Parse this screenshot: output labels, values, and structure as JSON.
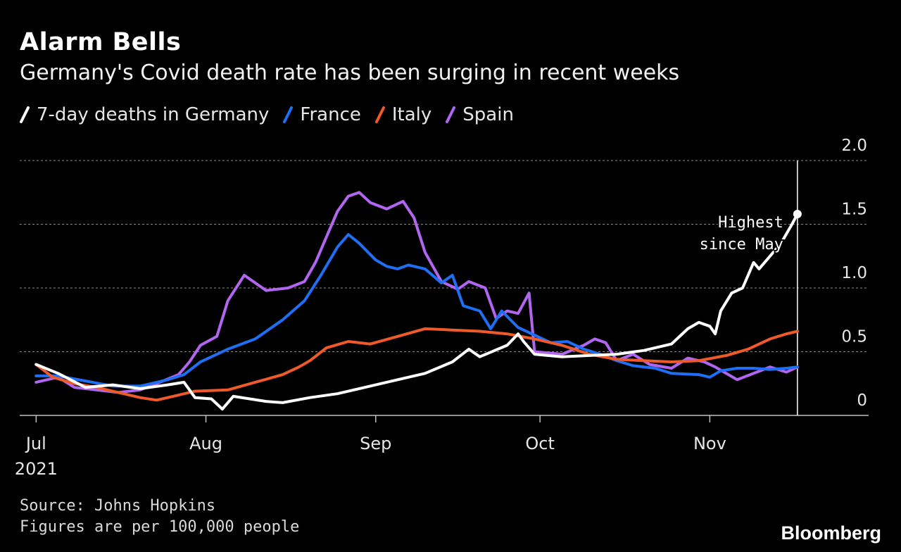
{
  "title": "Alarm Bells",
  "subtitle": "Germany's Covid death rate has been surging in recent weeks",
  "source_line1": "Source: Johns Hopkins",
  "source_line2": "Figures are per 100,000 people",
  "brand": "Bloomberg",
  "chart_data": {
    "type": "line",
    "x_start": "2021-07-01",
    "x_end": "2021-11-17",
    "x_range": [
      "2021-06-28",
      "2021-11-30"
    ],
    "ylim": [
      0,
      2.0
    ],
    "yticks": [
      0,
      0.5,
      1.0,
      1.5,
      2.0
    ],
    "ytick_labels": [
      "0",
      "0.5",
      "1.0",
      "1.5",
      "2.0"
    ],
    "x_ticks": [
      {
        "date": "2021-07-01",
        "label": "Jul",
        "sublabel": "2021"
      },
      {
        "date": "2021-08-01",
        "label": "Aug",
        "sublabel": ""
      },
      {
        "date": "2021-09-01",
        "label": "Sep",
        "sublabel": ""
      },
      {
        "date": "2021-10-01",
        "label": "Oct",
        "sublabel": ""
      },
      {
        "date": "2021-11-01",
        "label": "Nov",
        "sublabel": ""
      }
    ],
    "grid": true,
    "legend_position": "top-left",
    "series": [
      {
        "name": "7-day deaths in Germany",
        "color": "#ffffff",
        "points": [
          [
            "2021-07-01",
            0.4
          ],
          [
            "2021-07-05",
            0.33
          ],
          [
            "2021-07-10",
            0.22
          ],
          [
            "2021-07-15",
            0.24
          ],
          [
            "2021-07-20",
            0.21
          ],
          [
            "2021-07-25",
            0.24
          ],
          [
            "2021-07-28",
            0.26
          ],
          [
            "2021-07-30",
            0.14
          ],
          [
            "2021-08-02",
            0.13
          ],
          [
            "2021-08-04",
            0.05
          ],
          [
            "2021-08-06",
            0.15
          ],
          [
            "2021-08-12",
            0.11
          ],
          [
            "2021-08-15",
            0.1
          ],
          [
            "2021-08-20",
            0.14
          ],
          [
            "2021-08-25",
            0.17
          ],
          [
            "2021-08-30",
            0.22
          ],
          [
            "2021-09-05",
            0.28
          ],
          [
            "2021-09-10",
            0.33
          ],
          [
            "2021-09-15",
            0.42
          ],
          [
            "2021-09-18",
            0.52
          ],
          [
            "2021-09-20",
            0.46
          ],
          [
            "2021-09-25",
            0.55
          ],
          [
            "2021-09-27",
            0.64
          ],
          [
            "2021-09-28",
            0.58
          ],
          [
            "2021-09-30",
            0.48
          ],
          [
            "2021-10-05",
            0.46
          ],
          [
            "2021-10-10",
            0.47
          ],
          [
            "2021-10-15",
            0.48
          ],
          [
            "2021-10-20",
            0.51
          ],
          [
            "2021-10-25",
            0.56
          ],
          [
            "2021-10-28",
            0.68
          ],
          [
            "2021-10-30",
            0.73
          ],
          [
            "2021-11-01",
            0.7
          ],
          [
            "2021-11-02",
            0.64
          ],
          [
            "2021-11-03",
            0.82
          ],
          [
            "2021-11-05",
            0.96
          ],
          [
            "2021-11-07",
            1.0
          ],
          [
            "2021-11-09",
            1.2
          ],
          [
            "2021-11-10",
            1.15
          ],
          [
            "2021-11-12",
            1.25
          ],
          [
            "2021-11-14",
            1.35
          ],
          [
            "2021-11-16",
            1.5
          ],
          [
            "2021-11-17",
            1.58
          ]
        ]
      },
      {
        "name": "France",
        "color": "#1f6ff5",
        "points": [
          [
            "2021-07-01",
            0.31
          ],
          [
            "2021-07-05",
            0.31
          ],
          [
            "2021-07-10",
            0.27
          ],
          [
            "2021-07-15",
            0.23
          ],
          [
            "2021-07-20",
            0.23
          ],
          [
            "2021-07-25",
            0.28
          ],
          [
            "2021-07-28",
            0.32
          ],
          [
            "2021-07-31",
            0.42
          ],
          [
            "2021-08-05",
            0.52
          ],
          [
            "2021-08-10",
            0.6
          ],
          [
            "2021-08-15",
            0.75
          ],
          [
            "2021-08-19",
            0.9
          ],
          [
            "2021-08-22",
            1.1
          ],
          [
            "2021-08-25",
            1.32
          ],
          [
            "2021-08-27",
            1.42
          ],
          [
            "2021-08-29",
            1.35
          ],
          [
            "2021-09-01",
            1.22
          ],
          [
            "2021-09-03",
            1.17
          ],
          [
            "2021-09-05",
            1.15
          ],
          [
            "2021-09-07",
            1.18
          ],
          [
            "2021-09-10",
            1.15
          ],
          [
            "2021-09-13",
            1.04
          ],
          [
            "2021-09-15",
            1.1
          ],
          [
            "2021-09-17",
            0.86
          ],
          [
            "2021-09-20",
            0.82
          ],
          [
            "2021-09-22",
            0.68
          ],
          [
            "2021-09-24",
            0.82
          ],
          [
            "2021-09-27",
            0.69
          ],
          [
            "2021-09-30",
            0.63
          ],
          [
            "2021-10-03",
            0.57
          ],
          [
            "2021-10-06",
            0.58
          ],
          [
            "2021-10-09",
            0.52
          ],
          [
            "2021-10-12",
            0.48
          ],
          [
            "2021-10-15",
            0.43
          ],
          [
            "2021-10-18",
            0.39
          ],
          [
            "2021-10-22",
            0.37
          ],
          [
            "2021-10-25",
            0.33
          ],
          [
            "2021-10-30",
            0.32
          ],
          [
            "2021-11-01",
            0.3
          ],
          [
            "2021-11-03",
            0.35
          ],
          [
            "2021-11-06",
            0.37
          ],
          [
            "2021-11-09",
            0.37
          ],
          [
            "2021-11-12",
            0.36
          ],
          [
            "2021-11-15",
            0.37
          ],
          [
            "2021-11-17",
            0.38
          ]
        ]
      },
      {
        "name": "Italy",
        "color": "#ef5a2a",
        "points": [
          [
            "2021-07-01",
            0.4
          ],
          [
            "2021-07-04",
            0.3
          ],
          [
            "2021-07-08",
            0.25
          ],
          [
            "2021-07-12",
            0.22
          ],
          [
            "2021-07-16",
            0.18
          ],
          [
            "2021-07-20",
            0.14
          ],
          [
            "2021-07-23",
            0.12
          ],
          [
            "2021-07-26",
            0.15
          ],
          [
            "2021-07-30",
            0.19
          ],
          [
            "2021-08-05",
            0.2
          ],
          [
            "2021-08-10",
            0.26
          ],
          [
            "2021-08-15",
            0.32
          ],
          [
            "2021-08-18",
            0.38
          ],
          [
            "2021-08-20",
            0.43
          ],
          [
            "2021-08-23",
            0.53
          ],
          [
            "2021-08-27",
            0.58
          ],
          [
            "2021-08-31",
            0.56
          ],
          [
            "2021-09-05",
            0.62
          ],
          [
            "2021-09-10",
            0.68
          ],
          [
            "2021-09-15",
            0.67
          ],
          [
            "2021-09-20",
            0.66
          ],
          [
            "2021-09-25",
            0.64
          ],
          [
            "2021-09-30",
            0.6
          ],
          [
            "2021-10-05",
            0.55
          ],
          [
            "2021-10-10",
            0.48
          ],
          [
            "2021-10-15",
            0.44
          ],
          [
            "2021-10-20",
            0.43
          ],
          [
            "2021-10-25",
            0.42
          ],
          [
            "2021-10-30",
            0.43
          ],
          [
            "2021-11-04",
            0.47
          ],
          [
            "2021-11-08",
            0.52
          ],
          [
            "2021-11-12",
            0.6
          ],
          [
            "2021-11-15",
            0.64
          ],
          [
            "2021-11-17",
            0.66
          ]
        ]
      },
      {
        "name": "Spain",
        "color": "#b266f0",
        "points": [
          [
            "2021-07-01",
            0.26
          ],
          [
            "2021-07-05",
            0.3
          ],
          [
            "2021-07-08",
            0.22
          ],
          [
            "2021-07-12",
            0.2
          ],
          [
            "2021-07-16",
            0.18
          ],
          [
            "2021-07-20",
            0.2
          ],
          [
            "2021-07-23",
            0.25
          ],
          [
            "2021-07-27",
            0.32
          ],
          [
            "2021-07-29",
            0.42
          ],
          [
            "2021-07-31",
            0.55
          ],
          [
            "2021-08-03",
            0.62
          ],
          [
            "2021-08-05",
            0.9
          ],
          [
            "2021-08-08",
            1.1
          ],
          [
            "2021-08-12",
            0.98
          ],
          [
            "2021-08-16",
            1.0
          ],
          [
            "2021-08-19",
            1.05
          ],
          [
            "2021-08-21",
            1.2
          ],
          [
            "2021-08-23",
            1.4
          ],
          [
            "2021-08-25",
            1.6
          ],
          [
            "2021-08-27",
            1.72
          ],
          [
            "2021-08-29",
            1.75
          ],
          [
            "2021-08-31",
            1.67
          ],
          [
            "2021-09-03",
            1.62
          ],
          [
            "2021-09-06",
            1.68
          ],
          [
            "2021-09-08",
            1.55
          ],
          [
            "2021-09-10",
            1.28
          ],
          [
            "2021-09-13",
            1.05
          ],
          [
            "2021-09-16",
            0.99
          ],
          [
            "2021-09-18",
            1.05
          ],
          [
            "2021-09-21",
            1.0
          ],
          [
            "2021-09-23",
            0.76
          ],
          [
            "2021-09-25",
            0.82
          ],
          [
            "2021-09-27",
            0.8
          ],
          [
            "2021-09-29",
            0.96
          ],
          [
            "2021-09-30",
            0.5
          ],
          [
            "2021-10-05",
            0.48
          ],
          [
            "2021-10-09",
            0.55
          ],
          [
            "2021-10-11",
            0.6
          ],
          [
            "2021-10-13",
            0.57
          ],
          [
            "2021-10-15",
            0.43
          ],
          [
            "2021-10-18",
            0.48
          ],
          [
            "2021-10-21",
            0.4
          ],
          [
            "2021-10-25",
            0.37
          ],
          [
            "2021-10-28",
            0.45
          ],
          [
            "2021-10-31",
            0.42
          ],
          [
            "2021-11-02",
            0.38
          ],
          [
            "2021-11-06",
            0.28
          ],
          [
            "2021-11-09",
            0.33
          ],
          [
            "2021-11-12",
            0.38
          ],
          [
            "2021-11-15",
            0.34
          ],
          [
            "2021-11-17",
            0.38
          ]
        ]
      }
    ],
    "annotations": [
      {
        "text": "Highest since May",
        "line1": "Highest",
        "line2": "since May",
        "x": "2021-11-17",
        "y": 1.58
      }
    ]
  }
}
